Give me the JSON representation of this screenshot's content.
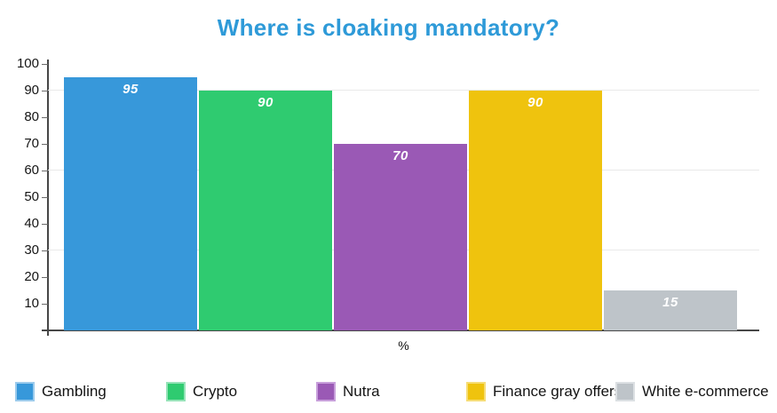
{
  "title": "Where is cloaking mandatory?",
  "colors": {
    "title": "#2E9AD8",
    "axis": "#474747",
    "grid": "#e9e9e9",
    "tick_label": "#141414",
    "value_label": "#ffffff",
    "background": "#ffffff"
  },
  "chart_data": {
    "type": "bar",
    "title": "Where is cloaking mandatory?",
    "categories": [
      "Gambling",
      "Crypto",
      "Nutra",
      "Finance gray offers",
      "White e-commerce"
    ],
    "values": [
      95,
      90,
      70,
      90,
      15
    ],
    "bar_colors": [
      "#3798DA",
      "#2FCB70",
      "#9A59B5",
      "#EFC30E",
      "#BEC4C9"
    ],
    "swatch_border_colors": [
      "#9CCBEC",
      "#96E3B8",
      "#C89FDB",
      "#F6DD76",
      "#DCE0E3"
    ],
    "value_labels": [
      "95",
      "90",
      "70",
      "90",
      "15"
    ],
    "xlabel": "%",
    "ylabel": "",
    "ylim": [
      0,
      100
    ],
    "yticks": [
      10,
      20,
      30,
      40,
      50,
      60,
      70,
      80,
      90,
      100
    ],
    "gridlines": [
      30,
      60,
      90
    ],
    "grid": "horizontal, only at 30/60/90",
    "legend_position": "bottom"
  }
}
